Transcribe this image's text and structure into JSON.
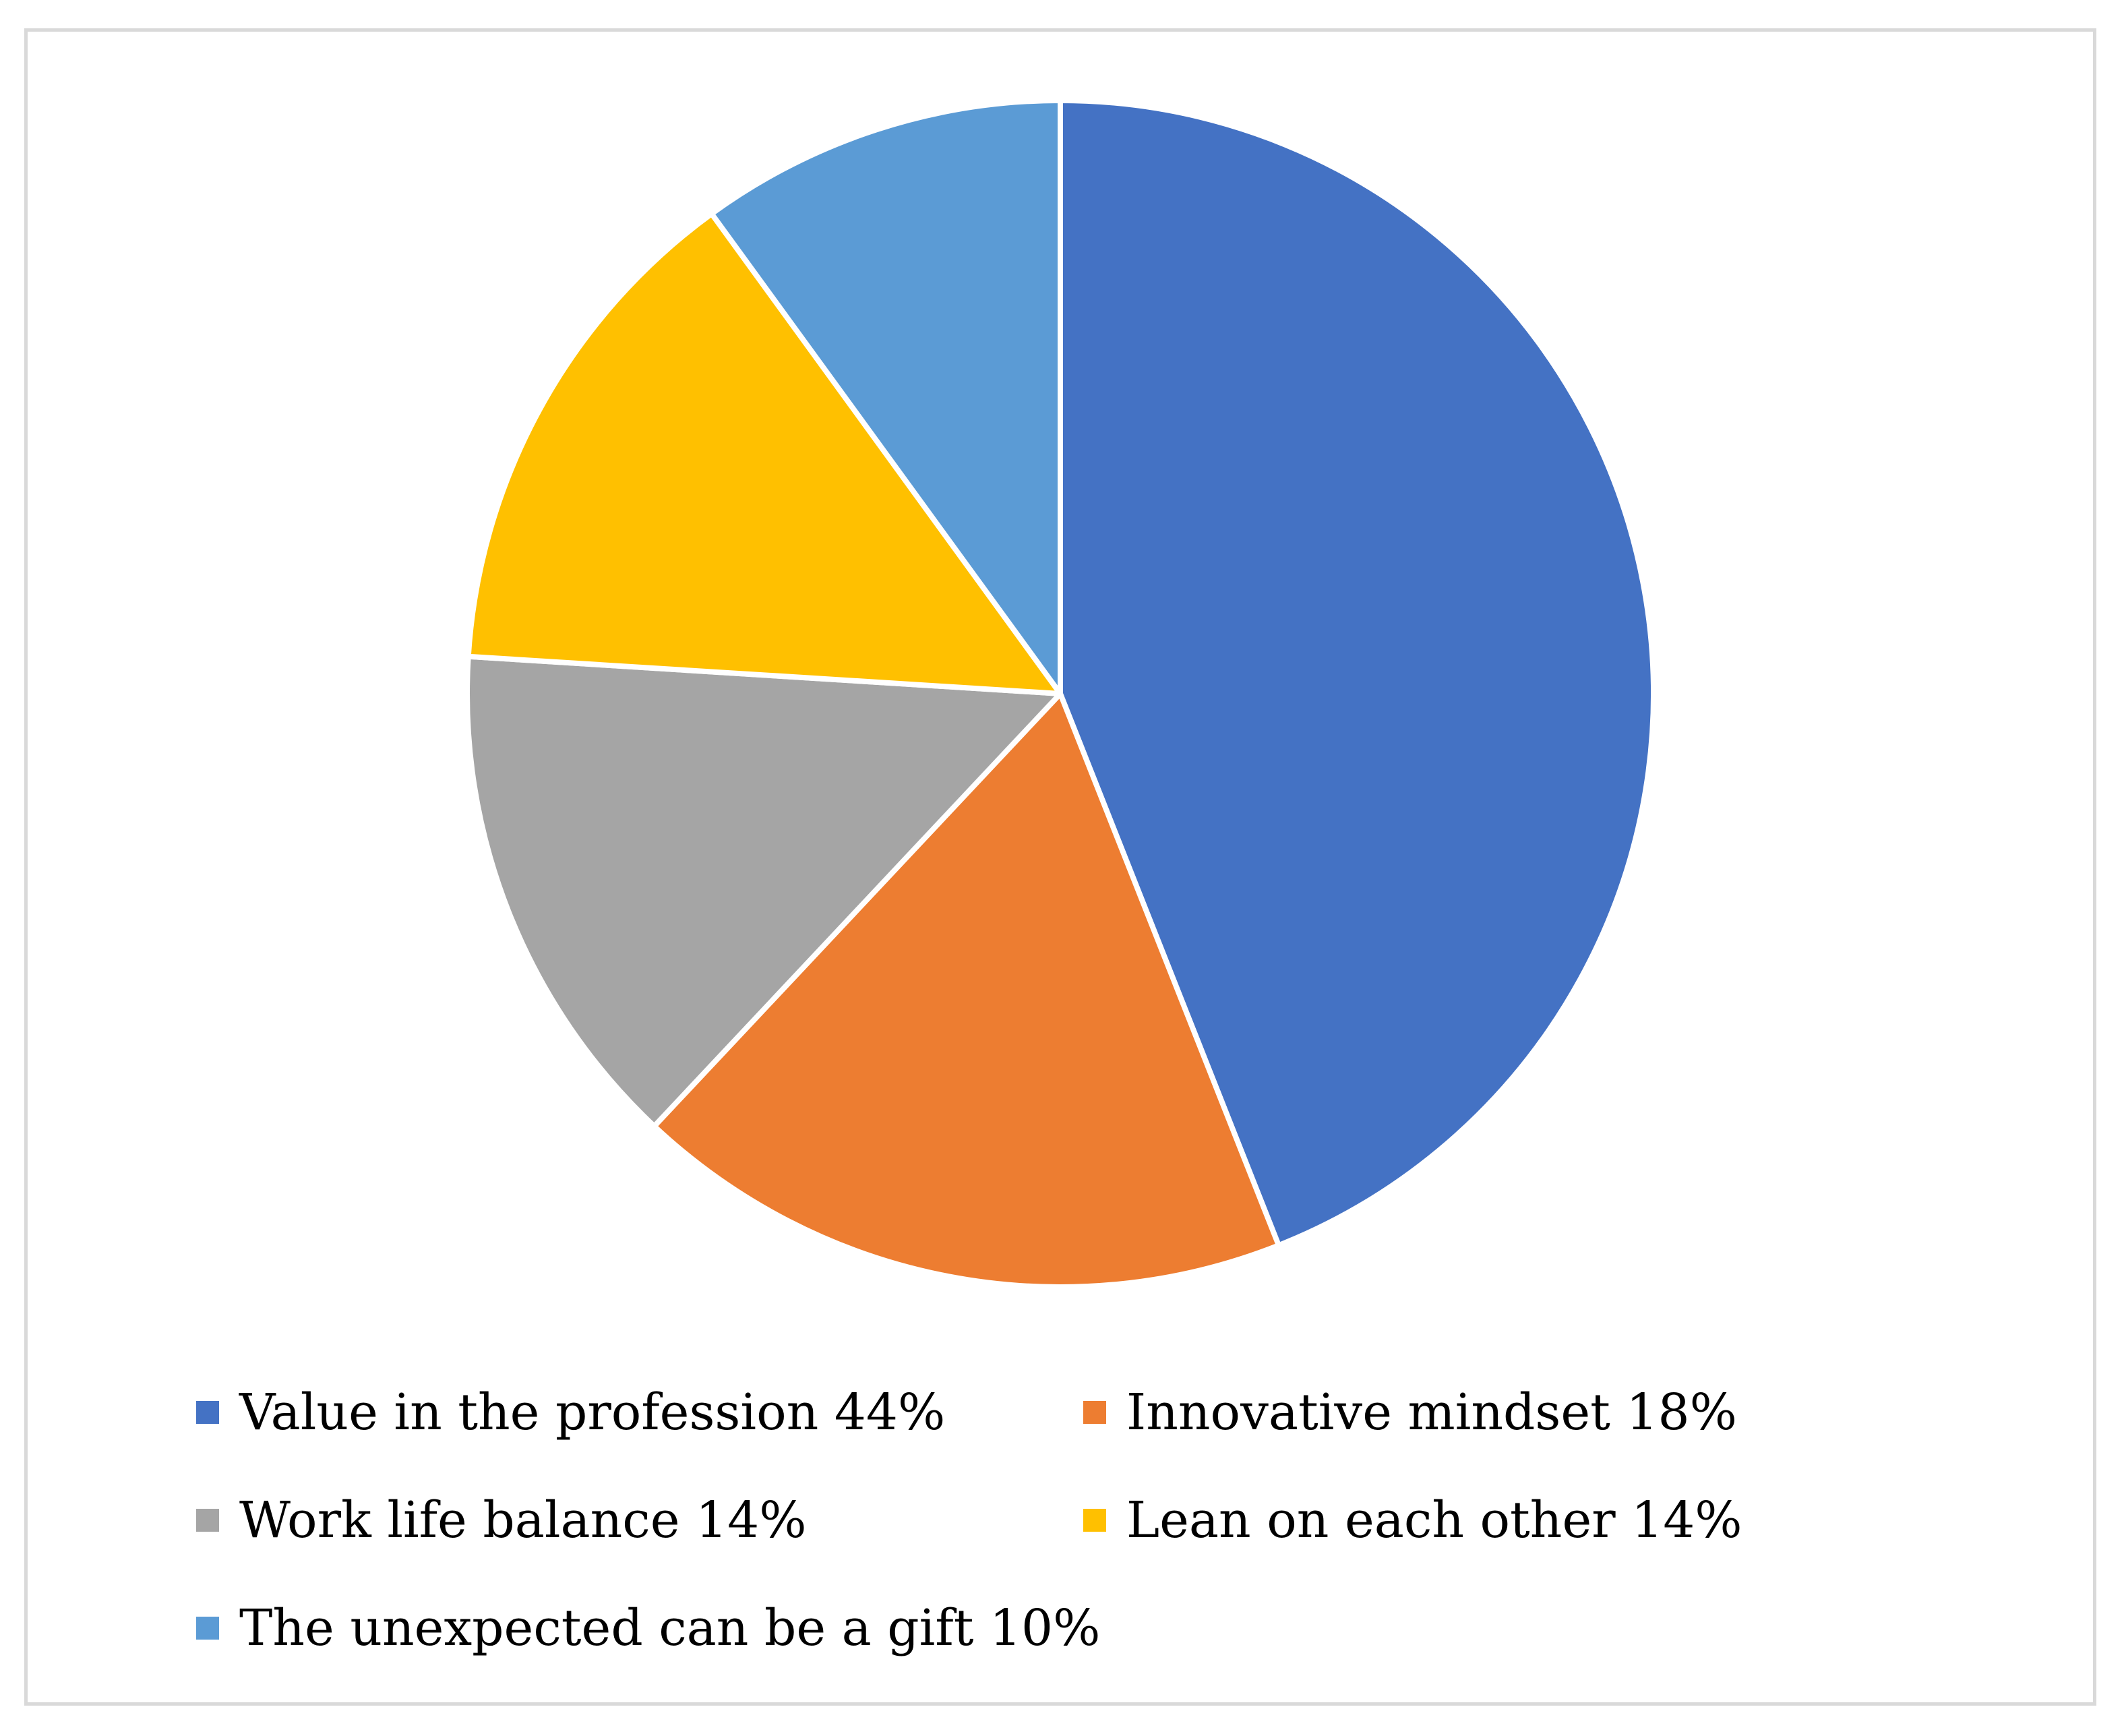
{
  "chart_data": {
    "type": "pie",
    "title": "",
    "slices": [
      {
        "label": "Value in the profession",
        "value": 44,
        "color": "#4472C4"
      },
      {
        "label": "Innovative mindset",
        "value": 18,
        "color": "#ED7D31"
      },
      {
        "label": "Work life balance",
        "value": 14,
        "color": "#A5A5A5"
      },
      {
        "label": "Lean on each other",
        "value": 14,
        "color": "#FFC000"
      },
      {
        "label": "The unexpected can be a gift",
        "value": 10,
        "color": "#5B9BD5"
      }
    ],
    "legend": {
      "position": "bottom",
      "items": [
        "Value in the profession 44%",
        "Innovative mindset 18%",
        "Work life balance 14%",
        "Lean on each other 14%",
        "The unexpected can be a gift 10%"
      ]
    }
  }
}
